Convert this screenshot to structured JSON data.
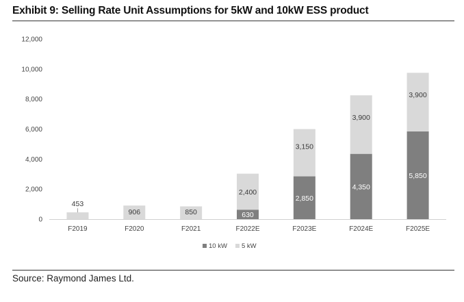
{
  "header": {
    "title": "Exhibit 9: Selling Rate Unit Assumptions for 5kW and 10kW ESS product"
  },
  "footer": {
    "source": "Source: Raymond James Ltd."
  },
  "chart_data": {
    "type": "bar",
    "stacked": true,
    "title": "",
    "xlabel": "",
    "ylabel": "",
    "categories": [
      "F2019",
      "F2020",
      "F2021",
      "F2022E",
      "F2023E",
      "F2024E",
      "F2025E"
    ],
    "series": [
      {
        "name": "10 kW",
        "color": "#7f7f7f",
        "values": [
          0,
          0,
          0,
          630,
          2850,
          4350,
          5850
        ],
        "labels": [
          "",
          "",
          "",
          "630",
          "2,850",
          "4,350",
          "5,850"
        ]
      },
      {
        "name": "5 kW",
        "color": "#d9d9d9",
        "values": [
          453,
          906,
          850,
          2400,
          3150,
          3900,
          3900
        ],
        "labels": [
          "453",
          "906",
          "850",
          "2,400",
          "3,150",
          "3,900",
          "3,900"
        ]
      }
    ],
    "ylim": [
      0,
      12000
    ],
    "yticks": [
      0,
      2000,
      4000,
      6000,
      8000,
      10000,
      12000
    ],
    "ytick_labels": [
      "0",
      "2,000",
      "4,000",
      "6,000",
      "8,000",
      "10,000",
      "12,000"
    ],
    "grid": false,
    "legend_position": "bottom"
  }
}
